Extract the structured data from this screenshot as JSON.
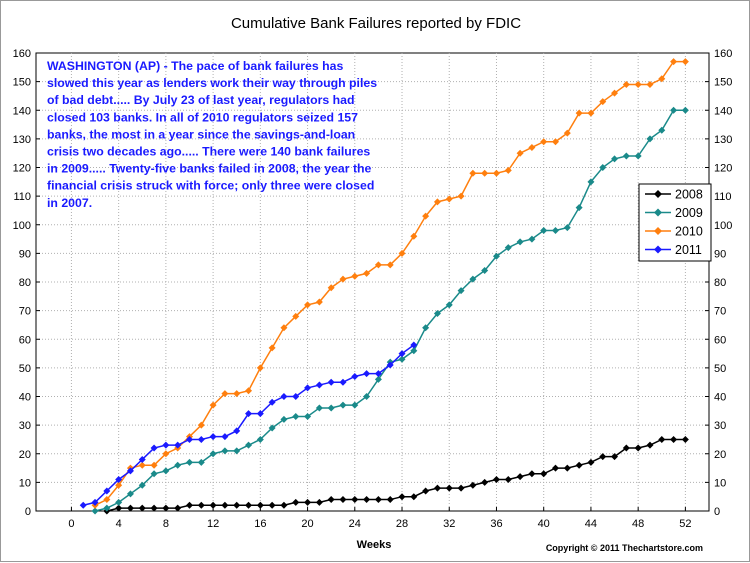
{
  "chart_data": {
    "type": "line",
    "title": "Cumulative Bank Failures reported by FDIC",
    "xlabel": "Weeks",
    "ylabel": "",
    "xlim": [
      -3,
      54
    ],
    "ylim": [
      0,
      160
    ],
    "x_ticks": [
      0,
      4,
      8,
      12,
      16,
      20,
      24,
      28,
      32,
      36,
      40,
      44,
      48,
      52
    ],
    "y_ticks": [
      0,
      10,
      20,
      30,
      40,
      50,
      60,
      70,
      80,
      90,
      100,
      110,
      120,
      130,
      140,
      150,
      160
    ],
    "grid": true,
    "legend_position": "right",
    "copyright": "Copyright © 2011 Thechartstore.com",
    "annotation_lines": [
      "WASHINGTON (AP) - The pace of bank failures has",
      "slowed this year as lenders work their way through piles",
      "of bad debt..... By July 23 of last year, regulators had",
      "closed 103 banks.  In all of 2010 regulators seized 157",
      "banks, the most in a year since the savings-and-loan",
      "crisis two decades ago..... There were 140 bank failures",
      "in 2009..... Twenty-five banks failed in 2008, the year the",
      "financial crisis struck with force; only three were closed",
      "in 2007."
    ],
    "series": [
      {
        "name": "2008",
        "color": "#000000",
        "x": [
          3,
          4,
          5,
          6,
          7,
          8,
          9,
          10,
          11,
          12,
          13,
          14,
          15,
          16,
          17,
          18,
          19,
          20,
          21,
          22,
          23,
          24,
          25,
          26,
          27,
          28,
          29,
          30,
          31,
          32,
          33,
          34,
          35,
          36,
          37,
          38,
          39,
          40,
          41,
          42,
          43,
          44,
          45,
          46,
          47,
          48,
          49,
          50,
          51,
          52
        ],
        "values": [
          0,
          1,
          1,
          1,
          1,
          1,
          1,
          2,
          2,
          2,
          2,
          2,
          2,
          2,
          2,
          2,
          3,
          3,
          3,
          4,
          4,
          4,
          4,
          4,
          4,
          5,
          5,
          7,
          8,
          8,
          8,
          9,
          10,
          11,
          11,
          12,
          13,
          13,
          15,
          15,
          16,
          17,
          19,
          19,
          22,
          22,
          23,
          25,
          25,
          25
        ]
      },
      {
        "name": "2009",
        "color": "#1a8a8a",
        "x": [
          2,
          3,
          4,
          5,
          6,
          7,
          8,
          9,
          10,
          11,
          12,
          13,
          14,
          15,
          16,
          17,
          18,
          19,
          20,
          21,
          22,
          23,
          24,
          25,
          26,
          27,
          28,
          29,
          30,
          31,
          32,
          33,
          34,
          35,
          36,
          37,
          38,
          39,
          40,
          41,
          42,
          43,
          44,
          45,
          46,
          47,
          48,
          49,
          50,
          51,
          52
        ],
        "values": [
          0,
          1,
          3,
          6,
          9,
          13,
          14,
          16,
          17,
          17,
          20,
          21,
          21,
          23,
          25,
          29,
          32,
          33,
          33,
          36,
          36,
          37,
          37,
          40,
          46,
          52,
          53,
          56,
          64,
          69,
          72,
          77,
          81,
          84,
          89,
          92,
          94,
          95,
          98,
          98,
          99,
          106,
          115,
          120,
          123,
          124,
          124,
          130,
          133,
          140,
          140
        ]
      },
      {
        "name": "2010",
        "color": "#ff7f0e",
        "x": [
          2,
          3,
          4,
          5,
          6,
          7,
          8,
          9,
          10,
          11,
          12,
          13,
          14,
          15,
          16,
          17,
          18,
          19,
          20,
          21,
          22,
          23,
          24,
          25,
          26,
          27,
          28,
          29,
          30,
          31,
          32,
          33,
          34,
          35,
          36,
          37,
          38,
          39,
          40,
          41,
          42,
          43,
          44,
          45,
          46,
          47,
          48,
          49,
          50,
          51,
          52
        ],
        "values": [
          2,
          4,
          9,
          15,
          16,
          16,
          20,
          22,
          26,
          30,
          37,
          41,
          41,
          42,
          50,
          57,
          64,
          68,
          72,
          73,
          78,
          81,
          82,
          83,
          86,
          86,
          90,
          96,
          103,
          108,
          109,
          110,
          118,
          118,
          118,
          119,
          125,
          127,
          129,
          129,
          132,
          139,
          139,
          143,
          146,
          149,
          149,
          149,
          151,
          157,
          157
        ]
      },
      {
        "name": "2011",
        "color": "#1a1aff",
        "x": [
          1,
          2,
          3,
          4,
          5,
          6,
          7,
          8,
          9,
          10,
          11,
          12,
          13,
          14,
          15,
          16,
          17,
          18,
          19,
          20,
          21,
          22,
          23,
          24,
          25,
          26,
          27,
          28,
          29
        ],
        "values": [
          2,
          3,
          7,
          11,
          14,
          18,
          22,
          23,
          23,
          25,
          25,
          26,
          26,
          28,
          34,
          34,
          38,
          40,
          40,
          43,
          44,
          45,
          45,
          47,
          48,
          48,
          51,
          55,
          58
        ]
      }
    ]
  }
}
